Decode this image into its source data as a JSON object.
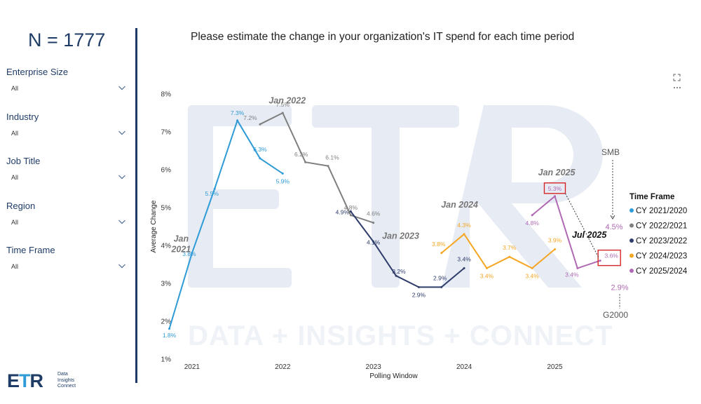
{
  "sidebar": {
    "n_count": "N = 1777",
    "filters": [
      {
        "label": "Enterprise Size",
        "value": "All"
      },
      {
        "label": "Industry",
        "value": "All"
      },
      {
        "label": "Job Title",
        "value": "All"
      },
      {
        "label": "Region",
        "value": "All"
      },
      {
        "label": "Time Frame",
        "value": "All"
      }
    ]
  },
  "logo": {
    "mark": "ETR",
    "tagline": [
      "Data",
      "Insights",
      "Connect"
    ]
  },
  "watermark": {
    "text": "DATA + INSIGHTS + CONNECT"
  },
  "icons": [
    "expand-icon",
    "more-options-icon"
  ],
  "chart_data": {
    "type": "line",
    "title": "Please estimate the change in your organization's IT spend for each time period",
    "xlabel": "Polling Window",
    "ylabel": "Average Change",
    "x_ticks": [
      "2021",
      "2022",
      "2023",
      "2024",
      "2025"
    ],
    "y_ticks": [
      "1%",
      "2%",
      "3%",
      "4%",
      "5%",
      "6%",
      "7%",
      "8%"
    ],
    "ylim": [
      1,
      8
    ],
    "xlim": [
      2020.8,
      2025.8
    ],
    "legend_title": "Time Frame",
    "legend_position": "right",
    "series": [
      {
        "name": "CY 2021/2020",
        "color": "#2e9bd6",
        "points": [
          {
            "x": 2020.75,
            "y": 1.8,
            "label": "1.8%"
          },
          {
            "x": 2021.0,
            "y": 3.8,
            "label": "3.8%"
          },
          {
            "x": 2021.25,
            "y": 5.5,
            "label": "5.5%"
          },
          {
            "x": 2021.5,
            "y": 7.3,
            "label": "7.3%"
          },
          {
            "x": 2021.75,
            "y": 6.3,
            "label": "6.3%"
          },
          {
            "x": 2022.0,
            "y": 5.9,
            "label": "5.9%"
          }
        ]
      },
      {
        "name": "CY 2022/2021",
        "color": "#7f7f7f",
        "points": [
          {
            "x": 2021.75,
            "y": 7.2,
            "label": "7.2%"
          },
          {
            "x": 2022.0,
            "y": 7.5,
            "label": "7.5%"
          },
          {
            "x": 2022.25,
            "y": 6.2,
            "label": "6.2%"
          },
          {
            "x": 2022.5,
            "y": 6.1,
            "label": "6.1%"
          },
          {
            "x": 2022.75,
            "y": 4.8,
            "label": "4.8%"
          },
          {
            "x": 2023.0,
            "y": 4.6,
            "label": "4.6%"
          }
        ]
      },
      {
        "name": "CY 2023/2022",
        "color": "#2f3d6b",
        "points": [
          {
            "x": 2022.75,
            "y": 4.9,
            "label": "4.9%"
          },
          {
            "x": 2023.0,
            "y": 4.1,
            "label": "4.1%"
          },
          {
            "x": 2023.25,
            "y": 3.2,
            "label": "3.2%"
          },
          {
            "x": 2023.5,
            "y": 2.9,
            "label": "2.9%"
          },
          {
            "x": 2023.75,
            "y": 2.9,
            "label": "2.9%"
          },
          {
            "x": 2024.0,
            "y": 3.4,
            "label": "3.4%"
          }
        ]
      },
      {
        "name": "CY 2024/2023",
        "color": "#f5a623",
        "points": [
          {
            "x": 2023.75,
            "y": 3.8,
            "label": "3.8%"
          },
          {
            "x": 2024.0,
            "y": 4.3,
            "label": "4.3%"
          },
          {
            "x": 2024.25,
            "y": 3.4,
            "label": "3.4%"
          },
          {
            "x": 2024.5,
            "y": 3.7,
            "label": "3.7%"
          },
          {
            "x": 2024.75,
            "y": 3.4,
            "label": "3.4%"
          },
          {
            "x": 2025.0,
            "y": 3.9,
            "label": "3.9%"
          }
        ]
      },
      {
        "name": "CY 2025/2024",
        "color": "#b06ab3",
        "points": [
          {
            "x": 2024.75,
            "y": 4.8,
            "label": "4.8%"
          },
          {
            "x": 2025.0,
            "y": 5.3,
            "label": "5.3%"
          },
          {
            "x": 2025.25,
            "y": 3.4,
            "label": "3.4%"
          },
          {
            "x": 2025.5,
            "y": 3.6,
            "label": "3.6%"
          }
        ]
      }
    ],
    "annotations": {
      "periods": [
        {
          "text": "Jan 2021",
          "x": 2020.88,
          "y": 4.1,
          "style": "grey"
        },
        {
          "text": "Jan 2022",
          "x": 2022.05,
          "y": 7.75,
          "style": "grey"
        },
        {
          "text": "Jan 2023",
          "x": 2023.3,
          "y": 4.18,
          "style": "grey"
        },
        {
          "text": "Jan 2024",
          "x": 2023.95,
          "y": 5.0,
          "style": "grey"
        },
        {
          "text": "Jan 2025",
          "x": 2025.02,
          "y": 5.85,
          "style": "grey"
        },
        {
          "text": "Jul 2025",
          "x": 2025.38,
          "y": 4.2,
          "style": "dark"
        }
      ],
      "segments": [
        {
          "text": "SMB",
          "value": "4.5%",
          "y": 4.5
        },
        {
          "text": "G2000",
          "value": "2.9%",
          "y": 2.9
        }
      ]
    }
  }
}
